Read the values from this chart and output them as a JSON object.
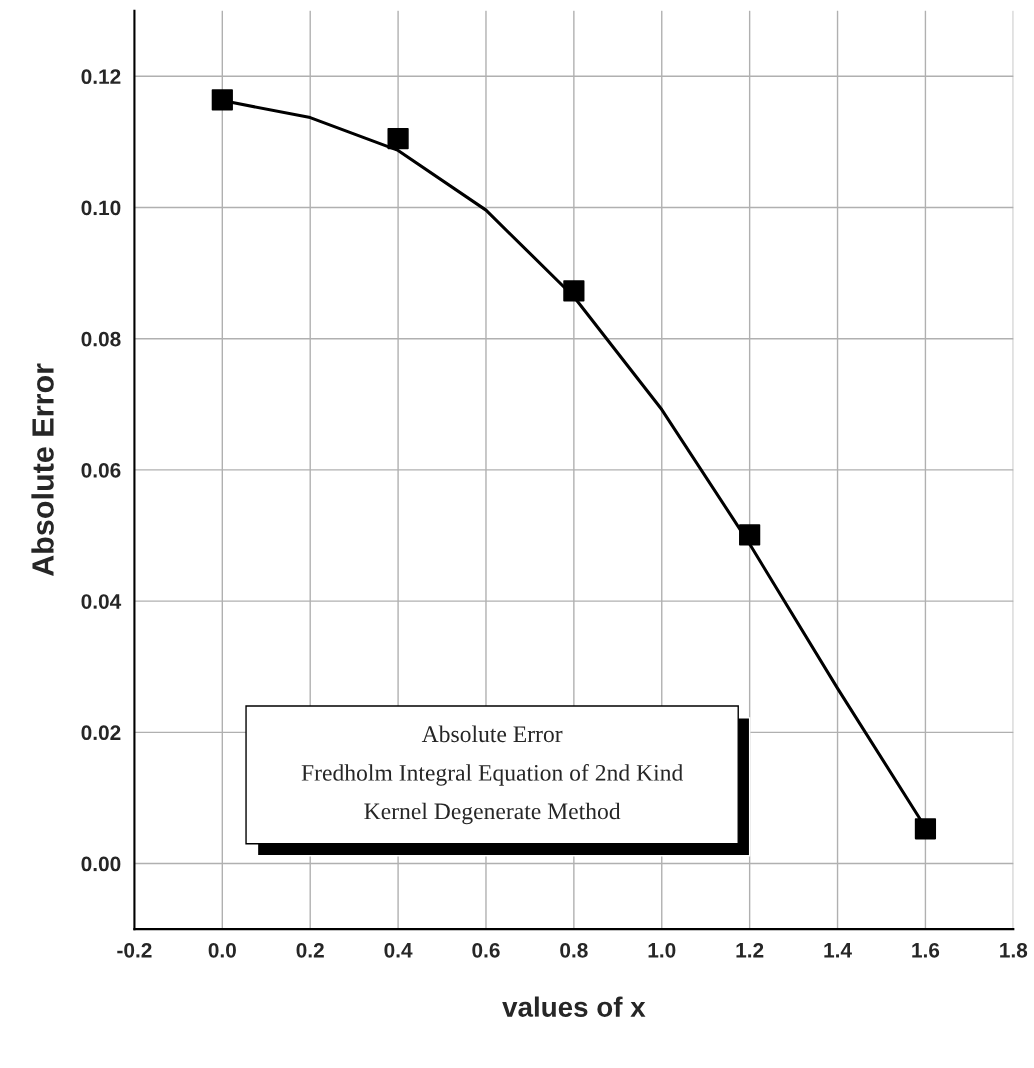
{
  "chart_data": {
    "type": "scatter",
    "xlabel": "values of x",
    "ylabel": "Absolute Error",
    "xlim": [
      -0.2,
      1.8
    ],
    "xticks": [
      {
        "value": -0.2,
        "label": "-0.2"
      },
      {
        "value": 0,
        "label": "0.0"
      },
      0.2,
      0.4,
      0.6,
      0.8,
      {
        "value": 1,
        "label": "1.0"
      },
      1.2,
      1.4,
      1.6,
      1.8
    ],
    "ylim": [
      -0.01,
      0.13
    ],
    "yticks": [
      {
        "value": 0,
        "label": "0.00"
      },
      {
        "value": 0.02,
        "label": "0.02"
      },
      {
        "value": 0.04,
        "label": "0.04"
      },
      {
        "value": 0.06,
        "label": "0.06"
      },
      {
        "value": 0.08,
        "label": "0.08"
      },
      {
        "value": 0.1,
        "label": "0.10"
      },
      {
        "value": 0.12,
        "label": "0.12"
      }
    ],
    "grid": true,
    "series": [
      {
        "color": "#000000",
        "marker": "square",
        "x": [
          0,
          0.4,
          0.8,
          1.2,
          1.6
        ],
        "values": [
          0.1164,
          0.1105,
          0.0873,
          0.0501,
          0.0053
        ]
      },
      {
        "type": "line",
        "color": "#000000",
        "line_style": "solid",
        "x": [
          0,
          0.2,
          0.4,
          0.6,
          0.8,
          1.0,
          1.2,
          1.4,
          1.6
        ],
        "values": [
          0.1163,
          0.1137,
          0.1087,
          0.0996,
          0.0864,
          0.0692,
          0.0487,
          0.0267,
          0.0055
        ]
      }
    ],
    "annotations": [
      "Absolute Error",
      "Fredholm Integral Equation of 2nd Kind",
      "Kernel Degenerate Method"
    ]
  }
}
